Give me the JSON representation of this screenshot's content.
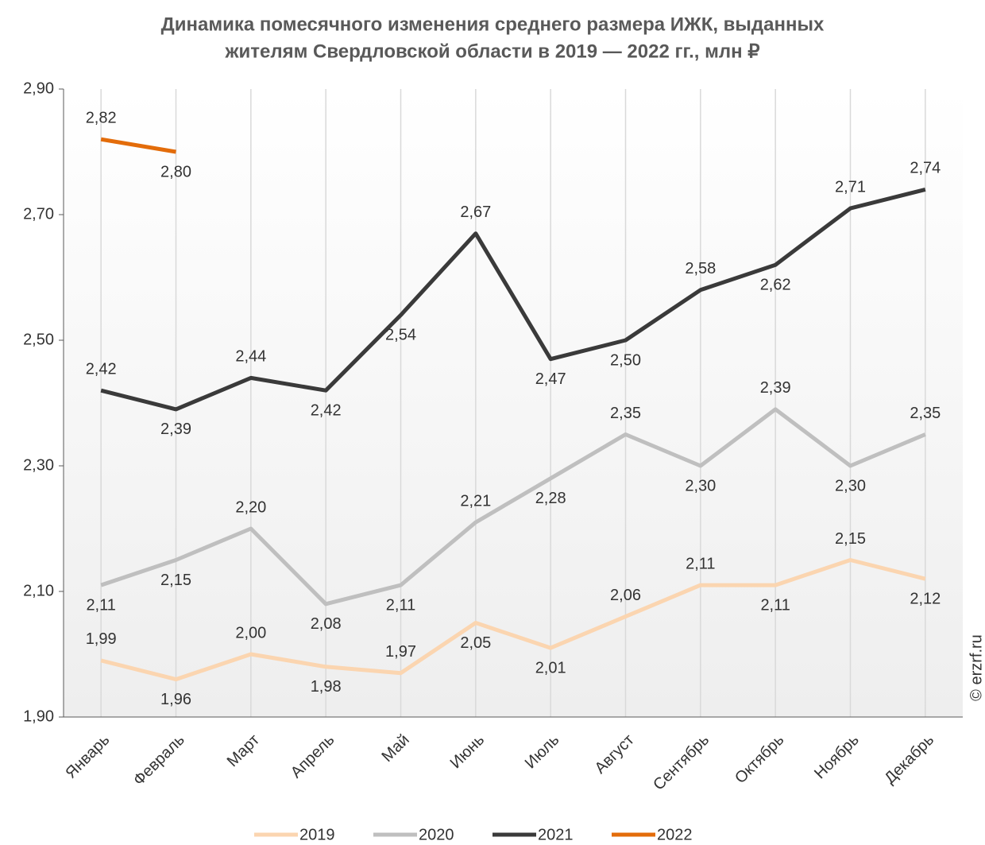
{
  "chart_data": {
    "type": "line",
    "title": [
      "Динамика помесячного изменения среднего размера ИЖК, выданных",
      "жителям Свердловской области в 2019 — 2022 гг., млн ₽"
    ],
    "source": "© erzrf.ru",
    "categories": [
      "Январь",
      "Февраль",
      "Март",
      "Апрель",
      "Май",
      "Июнь",
      "Июль",
      "Август",
      "Сентябрь",
      "Октябрь",
      "Ноябрь",
      "Декабрь"
    ],
    "ylim": [
      1.9,
      2.9
    ],
    "yticks": [
      {
        "value": 1.9,
        "label": "1,90"
      },
      {
        "value": 2.1,
        "label": "2,10"
      },
      {
        "value": 2.3,
        "label": "2,30"
      },
      {
        "value": 2.5,
        "label": "2,50"
      },
      {
        "value": 2.7,
        "label": "2,70"
      },
      {
        "value": 2.9,
        "label": "2,90"
      }
    ],
    "series": [
      {
        "name": "2019",
        "color": "#fbd5b0",
        "values": [
          1.99,
          1.96,
          2.0,
          1.98,
          1.97,
          2.05,
          2.01,
          2.06,
          2.11,
          2.11,
          2.15,
          2.12
        ],
        "value_labels": [
          "1,99",
          "1,96",
          "2,00",
          "1,98",
          "1,97",
          "2,05",
          "2,01",
          "2,06",
          "2,11",
          "2,11",
          "2,15",
          "2,12"
        ]
      },
      {
        "name": "2020",
        "color": "#bfbfbf",
        "values": [
          2.11,
          2.15,
          2.2,
          2.08,
          2.11,
          2.21,
          2.28,
          2.35,
          2.3,
          2.39,
          2.3,
          2.35
        ],
        "value_labels": [
          "2,11",
          "2,15",
          "2,20",
          "2,08",
          "2,11",
          "2,21",
          "2,28",
          "2,35",
          "2,30",
          "2,39",
          "2,30",
          "2,35"
        ]
      },
      {
        "name": "2021",
        "color": "#3a3a3a",
        "values": [
          2.42,
          2.39,
          2.44,
          2.42,
          2.54,
          2.67,
          2.47,
          2.5,
          2.58,
          2.62,
          2.71,
          2.74
        ],
        "value_labels": [
          "2,42",
          "2,39",
          "2,44",
          "2,42",
          "2,54",
          "2,67",
          "2,47",
          "2,50",
          "2,58",
          "2,62",
          "2,71",
          "2,74"
        ]
      },
      {
        "name": "2022",
        "color": "#e36c0a",
        "values": [
          2.82,
          2.8,
          null,
          null,
          null,
          null,
          null,
          null,
          null,
          null,
          null,
          null
        ],
        "value_labels": [
          "2,82",
          "2,80",
          null,
          null,
          null,
          null,
          null,
          null,
          null,
          null,
          null,
          null
        ]
      }
    ]
  }
}
